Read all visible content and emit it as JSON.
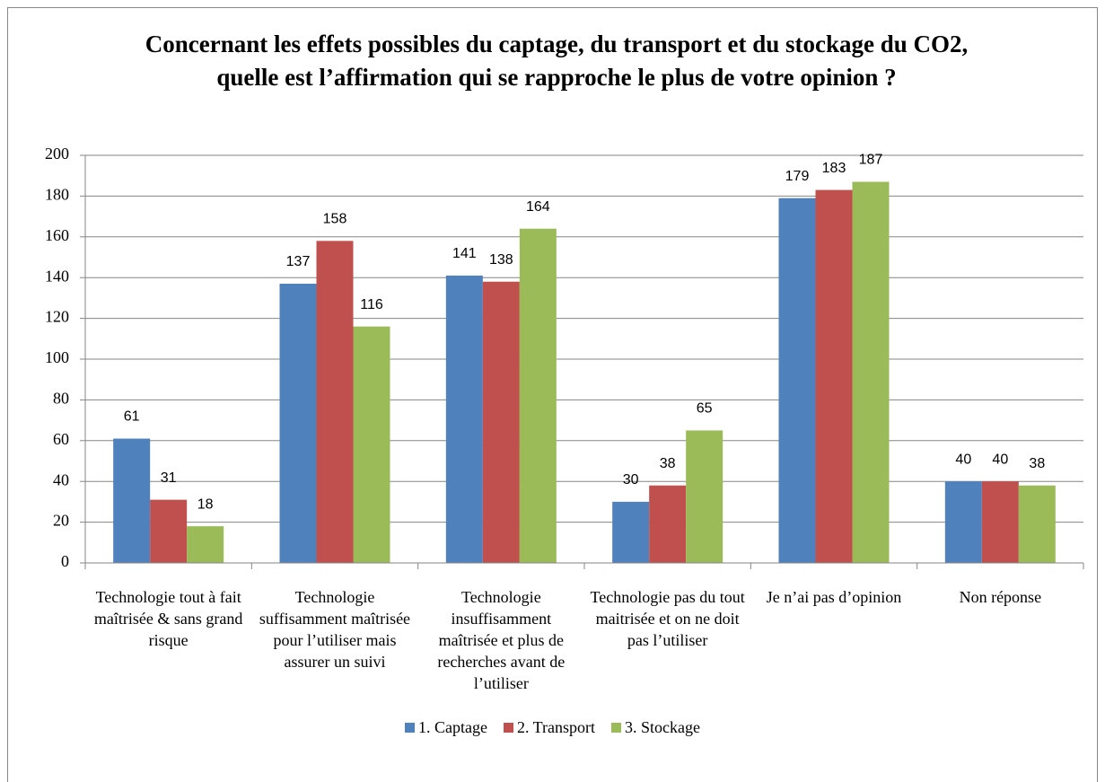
{
  "chart_data": {
    "type": "bar",
    "title": "Concernant les effets possibles du captage, du transport et du stockage du CO2, quelle est l’affirmation qui se rapproche le plus de votre opinion ?",
    "categories": [
      "Technologie tout à fait maîtrisée & sans grand risque",
      "Technologie suffisamment maîtrisée pour l’utiliser mais assurer un suivi",
      "Technologie insuffisamment maîtrisée et plus de recherches avant de l’utiliser",
      "Technologie pas du tout maitrisée et on ne doit pas l’utiliser",
      "Je n’ai pas d’opinion",
      "Non réponse"
    ],
    "series": [
      {
        "name": "1. Captage",
        "color": "#4f81bd",
        "values": [
          61,
          137,
          141,
          30,
          179,
          40
        ]
      },
      {
        "name": "2. Transport",
        "color": "#c0504d",
        "values": [
          31,
          158,
          138,
          38,
          183,
          40
        ]
      },
      {
        "name": "3. Stockage",
        "color": "#9bbb59",
        "values": [
          18,
          116,
          164,
          65,
          187,
          38
        ]
      }
    ],
    "ylim": [
      0,
      200
    ],
    "yticks": [
      0,
      20,
      40,
      60,
      80,
      100,
      120,
      140,
      160,
      180,
      200
    ],
    "grid": true,
    "legend": "bottom"
  }
}
